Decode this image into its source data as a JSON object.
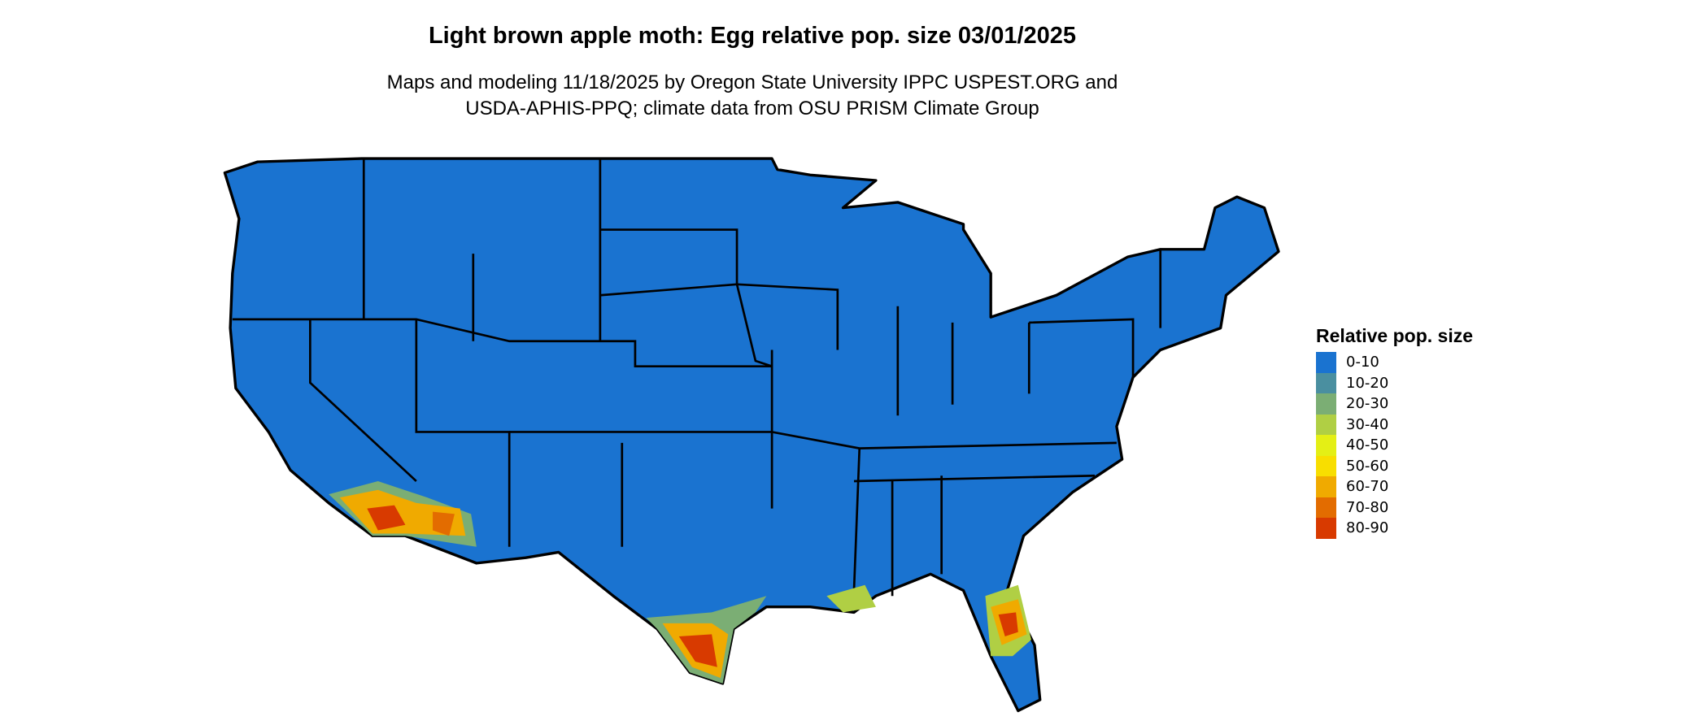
{
  "title": "Light brown apple moth: Egg relative pop. size 03/01/2025",
  "subtitle_line1": "Maps and modeling 11/18/2025 by Oregon State University IPPC USPEST.ORG and",
  "subtitle_line2": "USDA-APHIS-PPQ; climate data from OSU PRISM Climate Group",
  "legend": {
    "title": "Relative pop. size",
    "items": [
      {
        "label": "0-10",
        "color": "#1a73d0"
      },
      {
        "label": "10-20",
        "color": "#4a8fa0"
      },
      {
        "label": "20-30",
        "color": "#7bae74"
      },
      {
        "label": "30-40",
        "color": "#b0cf44"
      },
      {
        "label": "40-50",
        "color": "#e4ef15"
      },
      {
        "label": "50-60",
        "color": "#f8de00"
      },
      {
        "label": "60-70",
        "color": "#f0aa00"
      },
      {
        "label": "70-80",
        "color": "#e36c00"
      },
      {
        "label": "80-90",
        "color": "#d83a00"
      }
    ]
  }
}
